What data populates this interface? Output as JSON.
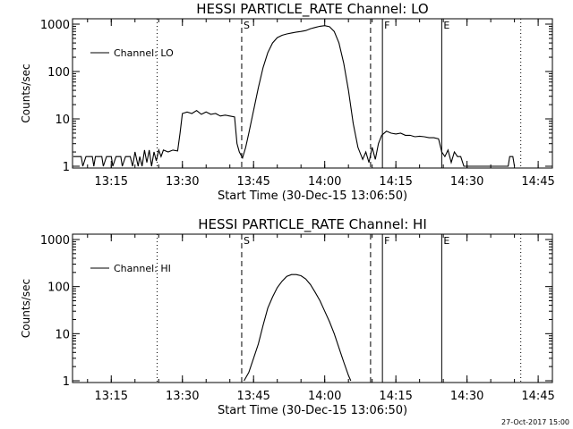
{
  "footer_timestamp": "27-Oct-2017 15:00",
  "x_tick_labels": [
    "13:15",
    "13:30",
    "13:45",
    "14:00",
    "14:15",
    "14:30",
    "14:45"
  ],
  "y_tick_labels": [
    "1",
    "10",
    "100",
    "1000"
  ],
  "chart_data": [
    {
      "type": "line",
      "title": "HESSI PARTICLE_RATE Channel: LO",
      "xlabel": "Start Time (30-Dec-15 13:06:50)",
      "ylabel": "Counts/sec",
      "y_scale": "log",
      "ylim": [
        1,
        1000
      ],
      "xlim": [
        "13:06:50",
        "14:48:00"
      ],
      "grid": false,
      "legend": {
        "placement": "top-left",
        "entries": [
          "Channel: LO"
        ]
      },
      "markers": [
        {
          "time": "13:24:40",
          "style": "dotted",
          "label": ""
        },
        {
          "time": "13:42:30",
          "style": "dashed",
          "label": "S"
        },
        {
          "time": "14:09:40",
          "style": "dashed",
          "label": ""
        },
        {
          "time": "14:12:10",
          "style": "solid",
          "label": "F"
        },
        {
          "time": "14:24:40",
          "style": "solid",
          "label": "E"
        },
        {
          "time": "14:41:20",
          "style": "dotted",
          "label": ""
        }
      ],
      "series": [
        {
          "name": "Channel: LO",
          "points": [
            [
              "13:07:00",
              1.6
            ],
            [
              "13:08:40",
              1.6
            ],
            [
              "13:09:00",
              1.0
            ],
            [
              "13:09:40",
              1.6
            ],
            [
              "13:11:00",
              1.6
            ],
            [
              "13:11:20",
              1.0
            ],
            [
              "13:11:40",
              1.6
            ],
            [
              "13:13:00",
              1.6
            ],
            [
              "13:13:20",
              1.0
            ],
            [
              "13:14:00",
              1.6
            ],
            [
              "13:15:00",
              1.6
            ],
            [
              "13:15:20",
              1.0
            ],
            [
              "13:16:00",
              1.6
            ],
            [
              "13:17:00",
              1.6
            ],
            [
              "13:17:20",
              1.0
            ],
            [
              "13:18:00",
              1.6
            ],
            [
              "13:19:00",
              1.6
            ],
            [
              "13:19:30",
              1.0
            ],
            [
              "13:20:00",
              2.0
            ],
            [
              "13:20:40",
              1.0
            ],
            [
              "13:21:00",
              1.6
            ],
            [
              "13:21:30",
              1.0
            ],
            [
              "13:22:00",
              2.2
            ],
            [
              "13:22:30",
              1.2
            ],
            [
              "13:23:00",
              2.2
            ],
            [
              "13:23:30",
              1.0
            ],
            [
              "13:24:00",
              2.0
            ],
            [
              "13:24:30",
              1.3
            ],
            [
              "13:25:00",
              2.2
            ],
            [
              "13:25:30",
              1.6
            ],
            [
              "13:26:00",
              2.2
            ],
            [
              "13:27:00",
              2.0
            ],
            [
              "13:28:00",
              2.2
            ],
            [
              "13:29:00",
              2.1
            ],
            [
              "13:29:30",
              5.0
            ],
            [
              "13:30:00",
              13.0
            ],
            [
              "13:31:00",
              14.0
            ],
            [
              "13:32:00",
              13.0
            ],
            [
              "13:33:00",
              15.0
            ],
            [
              "13:34:00",
              12.5
            ],
            [
              "13:35:00",
              14.0
            ],
            [
              "13:36:00",
              12.5
            ],
            [
              "13:37:00",
              13.0
            ],
            [
              "13:38:00",
              11.5
            ],
            [
              "13:39:00",
              12.0
            ],
            [
              "13:40:00",
              11.5
            ],
            [
              "13:41:00",
              11.0
            ],
            [
              "13:41:30",
              3.0
            ],
            [
              "13:42:00",
              2.0
            ],
            [
              "13:42:40",
              1.5
            ],
            [
              "13:43:20",
              2.5
            ],
            [
              "13:44:00",
              5.0
            ],
            [
              "13:45:00",
              15.0
            ],
            [
              "13:46:00",
              45.0
            ],
            [
              "13:47:00",
              120.0
            ],
            [
              "13:48:00",
              250.0
            ],
            [
              "13:49:00",
              400.0
            ],
            [
              "13:50:00",
              520.0
            ],
            [
              "13:51:00",
              580.0
            ],
            [
              "13:52:00",
              620.0
            ],
            [
              "13:53:00",
              650.0
            ],
            [
              "13:54:00",
              680.0
            ],
            [
              "13:55:00",
              700.0
            ],
            [
              "13:56:00",
              730.0
            ],
            [
              "13:57:00",
              800.0
            ],
            [
              "13:58:00",
              850.0
            ],
            [
              "13:59:00",
              900.0
            ],
            [
              "14:00:00",
              930.0
            ],
            [
              "14:01:00",
              880.0
            ],
            [
              "14:02:00",
              700.0
            ],
            [
              "14:03:00",
              400.0
            ],
            [
              "14:04:00",
              150.0
            ],
            [
              "14:05:00",
              40.0
            ],
            [
              "14:06:00",
              8.0
            ],
            [
              "14:07:00",
              2.5
            ],
            [
              "14:08:00",
              1.4
            ],
            [
              "14:08:40",
              2.0
            ],
            [
              "14:09:20",
              1.2
            ],
            [
              "14:10:00",
              2.5
            ],
            [
              "14:10:40",
              1.4
            ],
            [
              "14:11:20",
              3.0
            ],
            [
              "14:12:00",
              4.5
            ],
            [
              "14:13:00",
              5.5
            ],
            [
              "14:14:00",
              5.0
            ],
            [
              "14:15:00",
              4.8
            ],
            [
              "14:16:00",
              5.0
            ],
            [
              "14:17:00",
              4.5
            ],
            [
              "14:18:00",
              4.5
            ],
            [
              "14:19:00",
              4.2
            ],
            [
              "14:20:00",
              4.3
            ],
            [
              "14:21:00",
              4.2
            ],
            [
              "14:22:00",
              4.0
            ],
            [
              "14:23:00",
              4.0
            ],
            [
              "14:24:00",
              3.8
            ],
            [
              "14:24:40",
              2.0
            ],
            [
              "14:25:20",
              1.6
            ],
            [
              "14:26:00",
              2.2
            ],
            [
              "14:26:40",
              1.2
            ],
            [
              "14:27:20",
              2.0
            ],
            [
              "14:28:00",
              1.6
            ],
            [
              "14:28:40",
              1.6
            ],
            [
              "14:29:20",
              1.0
            ],
            [
              "14:38:40",
              1.0
            ],
            [
              "14:39:00",
              1.6
            ],
            [
              "14:39:40",
              1.6
            ],
            [
              "14:40:00",
              1.0
            ]
          ]
        }
      ]
    },
    {
      "type": "line",
      "title": "HESSI PARTICLE_RATE Channel: HI",
      "xlabel": "Start Time (30-Dec-15 13:06:50)",
      "ylabel": "Counts/sec",
      "y_scale": "log",
      "ylim": [
        1,
        1000
      ],
      "xlim": [
        "13:06:50",
        "14:48:00"
      ],
      "grid": false,
      "legend": {
        "placement": "top-left",
        "entries": [
          "Channel: HI"
        ]
      },
      "markers": [
        {
          "time": "13:24:40",
          "style": "dotted",
          "label": ""
        },
        {
          "time": "13:42:30",
          "style": "dashed",
          "label": "S"
        },
        {
          "time": "14:09:40",
          "style": "dashed",
          "label": ""
        },
        {
          "time": "14:12:10",
          "style": "solid",
          "label": "F"
        },
        {
          "time": "14:24:40",
          "style": "solid",
          "label": "E"
        },
        {
          "time": "14:41:20",
          "style": "dotted",
          "label": ""
        }
      ],
      "series": [
        {
          "name": "Channel: HI",
          "points": [
            [
              "13:43:00",
              1.0
            ],
            [
              "13:44:00",
              1.5
            ],
            [
              "13:45:00",
              3.0
            ],
            [
              "13:46:00",
              6.0
            ],
            [
              "13:47:00",
              15.0
            ],
            [
              "13:48:00",
              35.0
            ],
            [
              "13:49:00",
              60.0
            ],
            [
              "13:50:00",
              95.0
            ],
            [
              "13:51:00",
              130.0
            ],
            [
              "13:52:00",
              165.0
            ],
            [
              "13:53:00",
              180.0
            ],
            [
              "13:54:00",
              180.0
            ],
            [
              "13:55:00",
              170.0
            ],
            [
              "13:56:00",
              145.0
            ],
            [
              "13:57:00",
              110.0
            ],
            [
              "13:58:00",
              75.0
            ],
            [
              "13:59:00",
              50.0
            ],
            [
              "14:00:00",
              30.0
            ],
            [
              "14:01:00",
              18.0
            ],
            [
              "14:02:00",
              10.0
            ],
            [
              "14:03:00",
              5.0
            ],
            [
              "14:04:00",
              2.5
            ],
            [
              "14:05:00",
              1.3
            ],
            [
              "14:05:30",
              1.0
            ]
          ]
        }
      ]
    }
  ]
}
